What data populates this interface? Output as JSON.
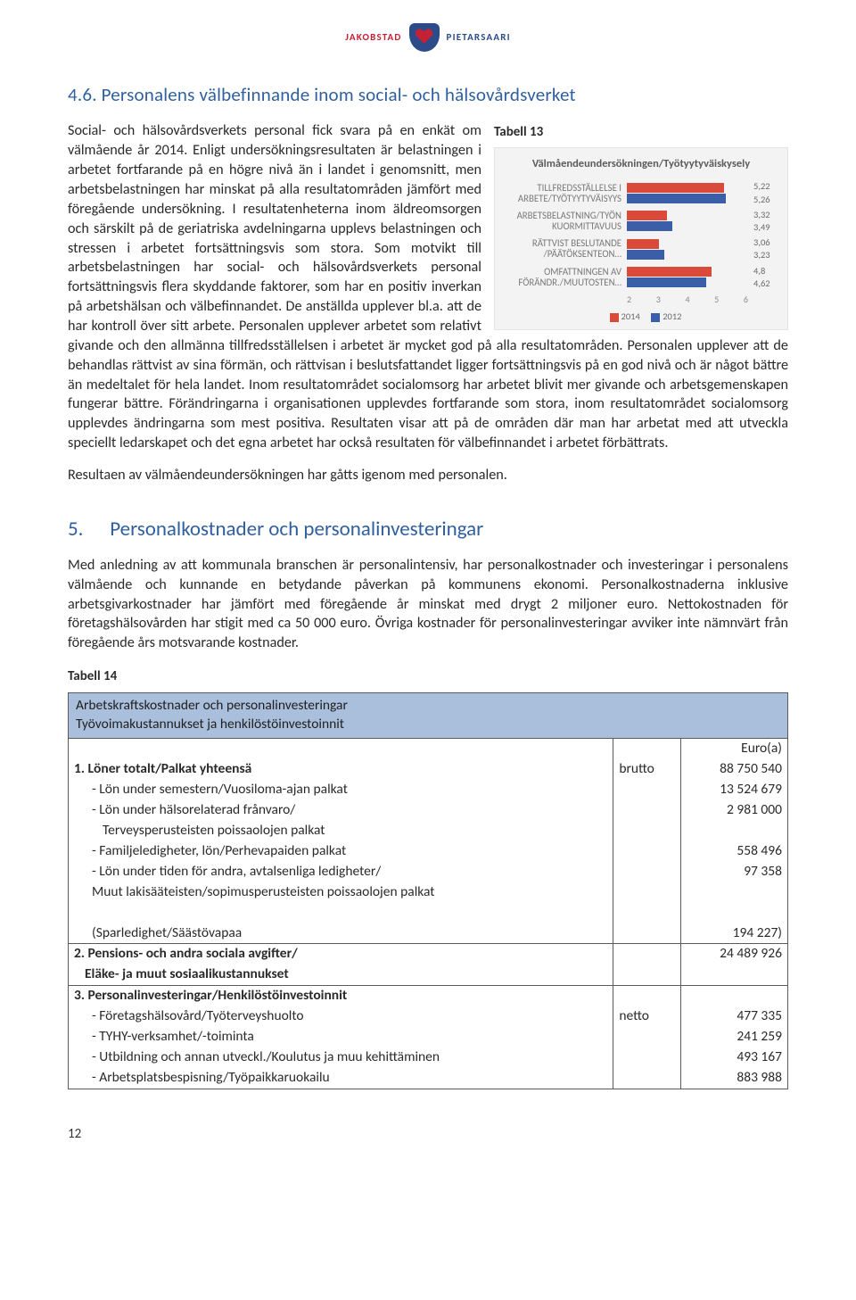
{
  "brand": {
    "left": "JAKOBSTAD",
    "right": "PIETARSAARI"
  },
  "section46": {
    "heading": "4.6.  Personalens välbefinnande inom social- och hälsovårdsverket",
    "p1": "Social- och hälsovårdsverkets personal fick svara på en enkät om välmående år 2014. Enligt undersökningsresultaten är belastningen i arbetet fortfarande på en högre nivå än i landet i genomsnitt, men arbetsbelastningen har minskat på alla resultatområden jämfört med föregående undersökning. I resultatenheterna inom äldreomsorgen och särskilt på de geriatriska avdelningarna upplevs belastningen och stressen i arbetet fortsättningsvis som stora. Som motvikt till arbetsbelastningen har social- och hälsovårdsverkets personal fortsättningsvis flera skyddande faktorer, som har en positiv inverkan på arbetshälsan och välbefinnandet. De anställda upplever bl.a. att de har kontroll över sitt arbete. Personalen upplever arbetet som relativt givande och den allmänna tillfredsställelsen i arbetet är mycket god på alla resultatområden. Personalen upplever att de behandlas rättvist av sina förmän, och rättvisan i beslutsfattandet ligger fortsättningsvis på en god nivå och är något bättre än medeltalet för hela landet. Inom resultatområdet socialomsorg har arbetet blivit mer givande och arbetsgemenskapen fungerar bättre. Förändringarna i organisationen upplevdes fortfarande som stora, inom resultatområdet socialomsorg upplevdes ändringarna som mest positiva. Resultaten visar att på de områden där man har arbetat med att utveckla speciellt ledarskapet och det egna arbetet har också resultaten för välbefinnandet i arbetet förbättrats.",
    "p2": "Resultaen av välmåendeundersökningen har gåtts igenom med personalen."
  },
  "chart13": {
    "label": "Tabell 13",
    "title": "Välmåendeundersökningen/Työtyytyväiskysely",
    "axis_min": 2,
    "axis_max": 6,
    "color_2014": "#d94a3a",
    "color_2012": "#3a5fa8",
    "legend_2014": "2014",
    "legend_2012": "2012",
    "rows": [
      {
        "label": "TILLFREDSSTÄLLELSE I ARBETE/TYÖTYYTYVÄISYYS",
        "v2014": 5.22,
        "v2012": 5.26
      },
      {
        "label": "ARBETSBELASTNING/TYÖN KUORMITTAVUUS",
        "v2014": 3.32,
        "v2012": 3.49
      },
      {
        "label": "RÄTTVIST BESLUTANDE /PÄÄTÖKSENTEON…",
        "v2014": 3.06,
        "v2012": 3.23
      },
      {
        "label": "OMFATTNINGEN AV FÖRÄNDR./MUUTOSTEN…",
        "v2014": 4.8,
        "v2012": 4.62
      }
    ]
  },
  "section5": {
    "heading_num": "5.",
    "heading_text": "Personalkostnader och personalinvesteringar",
    "p1": "Med anledning av att kommunala branschen är personalintensiv, har personalkostnader och investeringar i personalens välmående och kunnande en betydande påverkan på kommunens ekonomi. Personalkostnaderna inklusive arbetsgivarkostnader har jämfört med föregående år minskat med drygt 2 miljoner euro. Nettokostnaden för företagshälsovården har stigit med ca 50 000 euro. Övriga kostnader för personalinvesteringar avviker inte nämnvärt från föregående års motsvarande kostnader."
  },
  "table14": {
    "label": "Tabell 14",
    "header1": "Arbetskraftskostnader och personalinvesteringar",
    "header2": "Työvoimakustannukset ja henkilöstöinvestoinnit",
    "euro_label": "Euro(a)",
    "g1_title": "1. Löner totalt/Palkat yhteensä",
    "g1_brutto": "brutto",
    "g1_total": "88 750 540",
    "g1_items": [
      {
        "label": "Lön under semestern/Vuosiloma-ajan palkat",
        "val": "13 524 679"
      },
      {
        "label": "Lön under hälsorelaterad frånvaro/",
        "val": "2 981 000"
      }
    ],
    "g1_sub": "Terveysperusteisten poissaolojen palkat",
    "g1_items2": [
      {
        "label": "Familjeledigheter, lön/Perhevapaiden palkat",
        "val": "558 496"
      },
      {
        "label": "Lön under tiden för andra, avtalsenliga ledigheter/",
        "val": "97 358"
      }
    ],
    "g1_sub2": "Muut lakisääteisten/sopimusperusteisten poissaolojen palkat",
    "g1_spar_label": "(Sparledighet/Säästövapaa",
    "g1_spar_val": "194 227)",
    "g2_title1": "2. Pensions- och andra sociala avgifter/",
    "g2_title2": "Eläke- ja muut sosiaalikustannukset",
    "g2_val": "24 489 926",
    "g3_title": "3. Personalinvesteringar/Henkilöstöinvestoinnit",
    "g3_items": [
      {
        "label": "Företagshälsovård/Työterveyshuolto",
        "mid": "netto",
        "val": "477 335"
      },
      {
        "label": "TYHY-verksamhet/-toiminta",
        "mid": "",
        "val": "241 259"
      },
      {
        "label": "Utbildning och annan utveckl./Koulutus ja muu kehittäminen",
        "mid": "",
        "val": "493 167"
      },
      {
        "label": "Arbetsplatsbespisning/Työpaikkaruokailu",
        "mid": "",
        "val": "883 988"
      }
    ]
  },
  "pagenum": "12"
}
